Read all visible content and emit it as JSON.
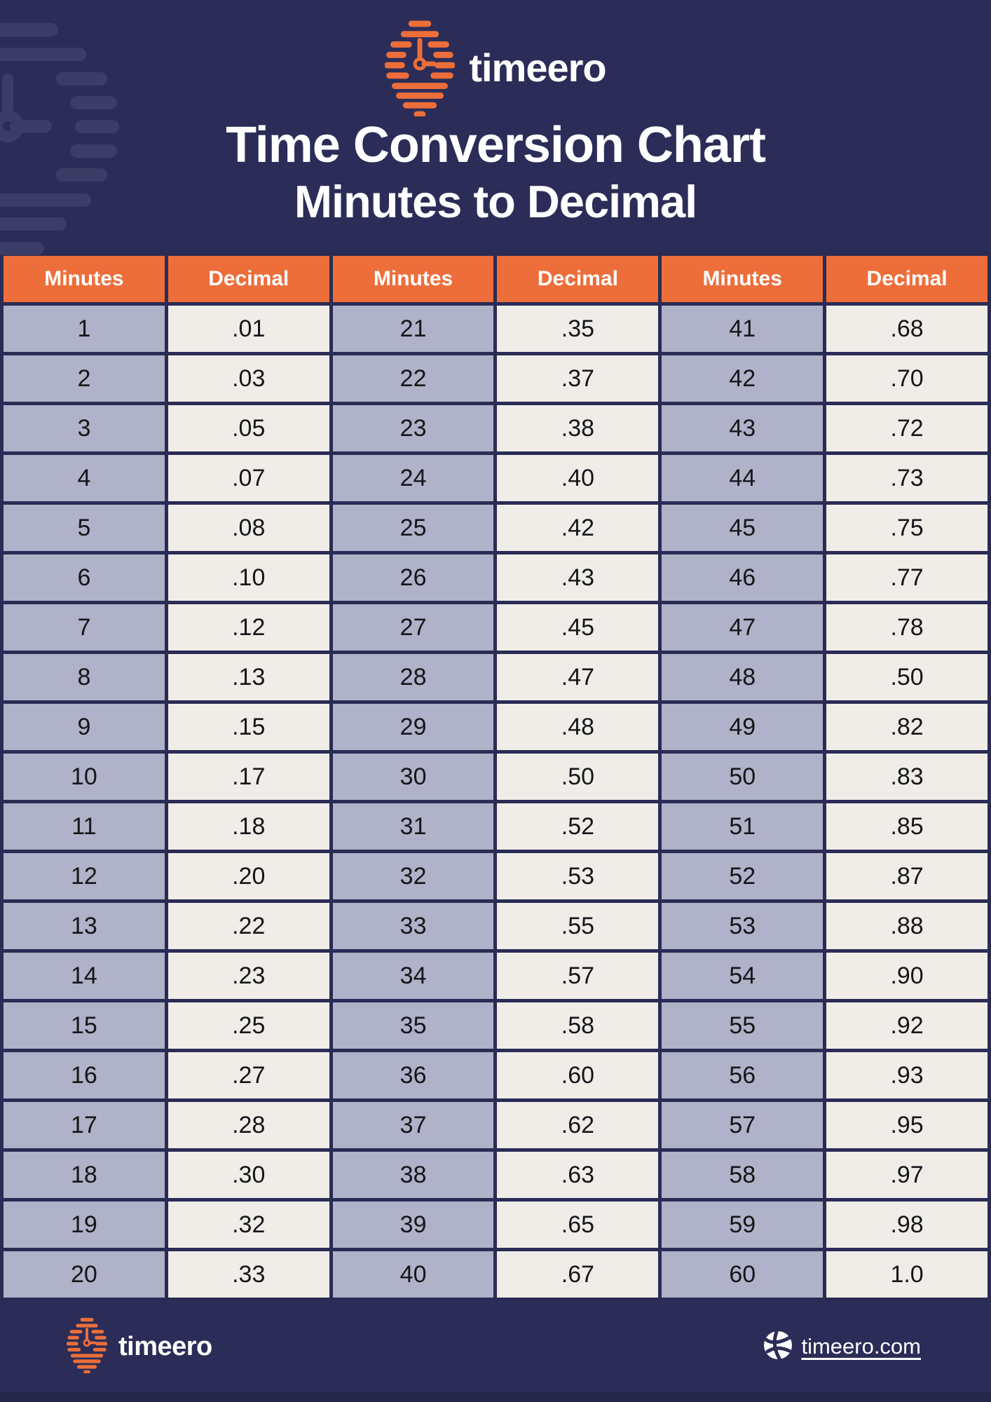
{
  "header": {
    "brand": "timeero",
    "title_line1": "Time Conversion Chart",
    "title_line2": "Minutes to Decimal"
  },
  "table": {
    "headers": [
      "Minutes",
      "Decimal",
      "Minutes",
      "Decimal",
      "Minutes",
      "Decimal"
    ],
    "rows": [
      [
        "1",
        ".01",
        "21",
        ".35",
        "41",
        ".68"
      ],
      [
        "2",
        ".03",
        "22",
        ".37",
        "42",
        ".70"
      ],
      [
        "3",
        ".05",
        "23",
        ".38",
        "43",
        ".72"
      ],
      [
        "4",
        ".07",
        "24",
        ".40",
        "44",
        ".73"
      ],
      [
        "5",
        ".08",
        "25",
        ".42",
        "45",
        ".75"
      ],
      [
        "6",
        ".10",
        "26",
        ".43",
        "46",
        ".77"
      ],
      [
        "7",
        ".12",
        "27",
        ".45",
        "47",
        ".78"
      ],
      [
        "8",
        ".13",
        "28",
        ".47",
        "48",
        ".50"
      ],
      [
        "9",
        ".15",
        "29",
        ".48",
        "49",
        ".82"
      ],
      [
        "10",
        ".17",
        "30",
        ".50",
        "50",
        ".83"
      ],
      [
        "11",
        ".18",
        "31",
        ".52",
        "51",
        ".85"
      ],
      [
        "12",
        ".20",
        "32",
        ".53",
        "52",
        ".87"
      ],
      [
        "13",
        ".22",
        "33",
        ".55",
        "53",
        ".88"
      ],
      [
        "14",
        ".23",
        "34",
        ".57",
        "54",
        ".90"
      ],
      [
        "15",
        ".25",
        "35",
        ".58",
        "55",
        ".92"
      ],
      [
        "16",
        ".27",
        "36",
        ".60",
        "56",
        ".93"
      ],
      [
        "17",
        ".28",
        "37",
        ".62",
        "57",
        ".95"
      ],
      [
        "18",
        ".30",
        "38",
        ".63",
        "58",
        ".97"
      ],
      [
        "19",
        ".32",
        "39",
        ".65",
        "59",
        ".98"
      ],
      [
        "20",
        ".33",
        "40",
        ".67",
        "60",
        "1.0"
      ]
    ]
  },
  "footer": {
    "brand": "timeero",
    "website": "timeero.com"
  },
  "colors": {
    "background_navy": "#2B2D58",
    "accent_orange": "#ED6E3A",
    "minutes_cell": "#AFB2C8",
    "decimal_cell": "#F0EDE9",
    "grid_border": "#2A2C55",
    "watermark": "#3B3D66",
    "text_light": "#FFFFFF",
    "text_dark": "#15161A"
  },
  "chart_data": {
    "type": "table",
    "title": "Time Conversion Chart Minutes to Decimal",
    "columns": [
      "Minutes",
      "Decimal"
    ],
    "minutes": [
      1,
      2,
      3,
      4,
      5,
      6,
      7,
      8,
      9,
      10,
      11,
      12,
      13,
      14,
      15,
      16,
      17,
      18,
      19,
      20,
      21,
      22,
      23,
      24,
      25,
      26,
      27,
      28,
      29,
      30,
      31,
      32,
      33,
      34,
      35,
      36,
      37,
      38,
      39,
      40,
      41,
      42,
      43,
      44,
      45,
      46,
      47,
      48,
      49,
      50,
      51,
      52,
      53,
      54,
      55,
      56,
      57,
      58,
      59,
      60
    ],
    "decimals": [
      ".01",
      ".03",
      ".05",
      ".07",
      ".08",
      ".10",
      ".12",
      ".13",
      ".15",
      ".17",
      ".18",
      ".20",
      ".22",
      ".23",
      ".25",
      ".27",
      ".28",
      ".30",
      ".32",
      ".33",
      ".35",
      ".37",
      ".38",
      ".40",
      ".42",
      ".43",
      ".45",
      ".47",
      ".48",
      ".50",
      ".52",
      ".53",
      ".55",
      ".57",
      ".58",
      ".60",
      ".62",
      ".63",
      ".65",
      ".67",
      ".68",
      ".70",
      ".72",
      ".73",
      ".75",
      ".77",
      ".78",
      ".50",
      ".82",
      ".83",
      ".85",
      ".87",
      ".88",
      ".90",
      ".92",
      ".93",
      ".95",
      ".97",
      ".98",
      "1.0"
    ],
    "layout": "three column-pairs of 20 rows each, orange header row repeated per pair"
  }
}
